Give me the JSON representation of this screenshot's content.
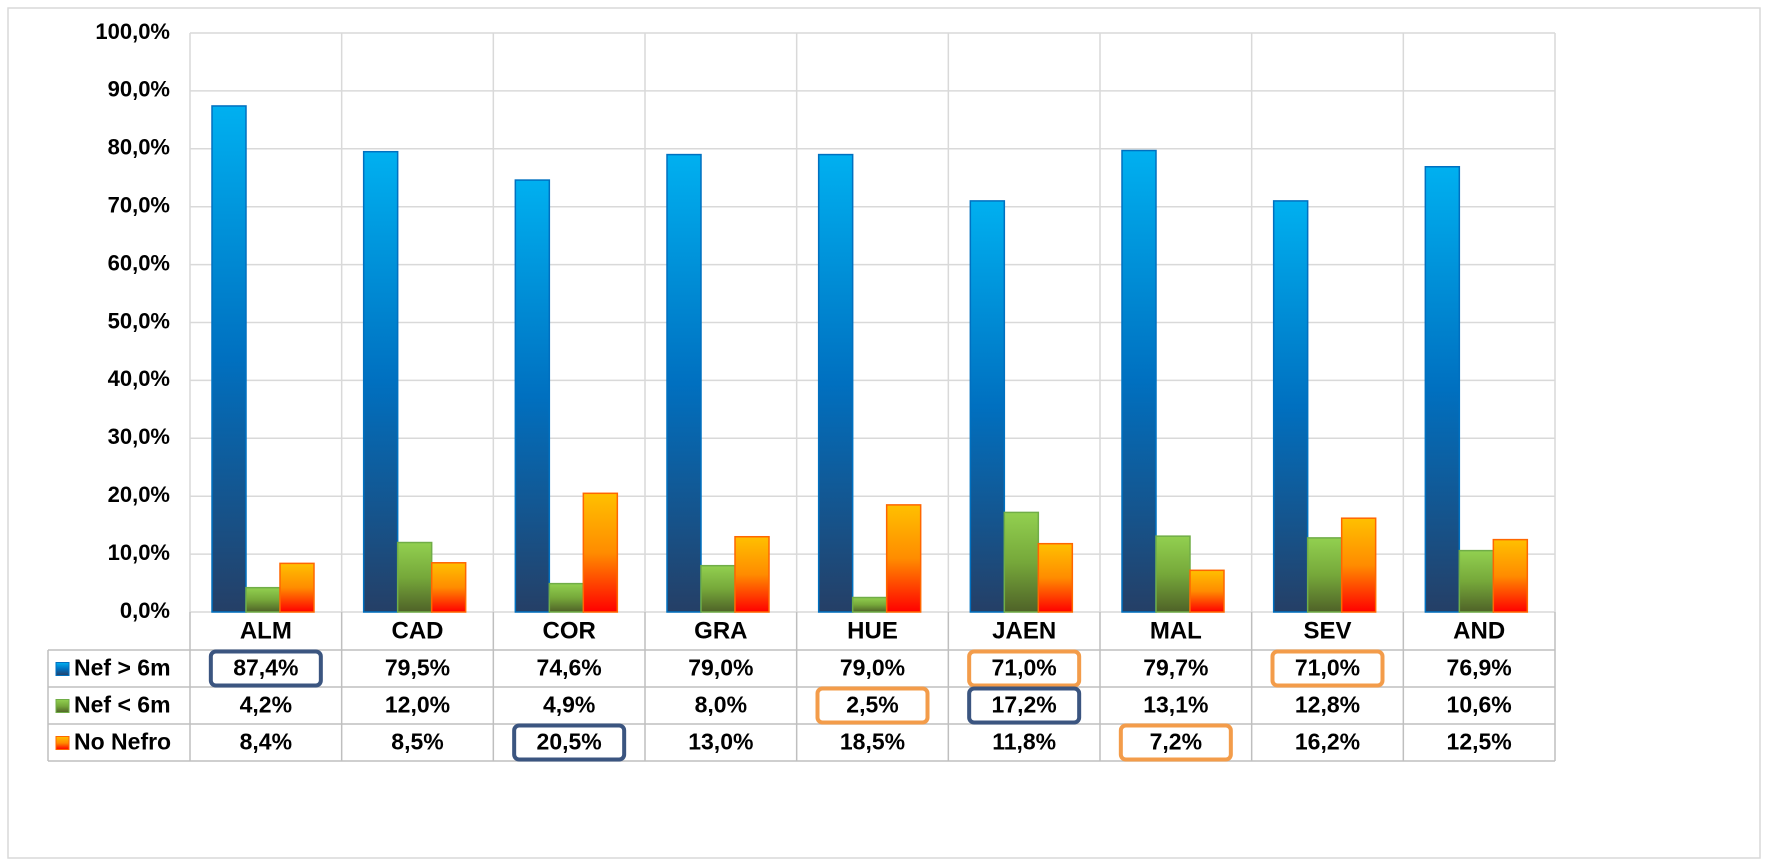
{
  "chart_data": {
    "type": "bar",
    "categories": [
      "ALM",
      "CAD",
      "COR",
      "GRA",
      "HUE",
      "JAEN",
      "MAL",
      "SEV",
      "AND"
    ],
    "series": [
      {
        "name": "Nef > 6m",
        "color": "#0070c0",
        "gradient": [
          "#00b0f0",
          "#0070c0",
          "#253f66"
        ],
        "values": [
          87.4,
          79.5,
          74.6,
          79.0,
          79.0,
          71.0,
          79.7,
          71.0,
          76.9
        ],
        "value_labels": [
          "87,4%",
          "79,5%",
          "74,6%",
          "79,0%",
          "79,0%",
          "71,0%",
          "79,7%",
          "71,0%",
          "76,9%"
        ]
      },
      {
        "name": "Nef < 6m",
        "color": "#70ad47",
        "gradient": [
          "#92d050",
          "#76a83a",
          "#4f6228"
        ],
        "values": [
          4.2,
          12.0,
          4.9,
          8.0,
          2.5,
          17.2,
          13.1,
          12.8,
          10.6
        ],
        "value_labels": [
          "4,2%",
          "12,0%",
          "4,9%",
          "8,0%",
          "2,5%",
          "17,2%",
          "13,1%",
          "12,8%",
          "10,6%"
        ]
      },
      {
        "name": "No Nefro",
        "color": "#ff6600",
        "gradient": [
          "#ffc000",
          "#ff8c00",
          "#ff0000"
        ],
        "values": [
          8.4,
          8.5,
          20.5,
          13.0,
          18.5,
          11.8,
          7.2,
          16.2,
          12.5
        ],
        "value_labels": [
          "8,4%",
          "8,5%",
          "20,5%",
          "13,0%",
          "18,5%",
          "11,8%",
          "7,2%",
          "16,2%",
          "12,5%"
        ]
      }
    ],
    "ylim": [
      0,
      100
    ],
    "yticks": [
      {
        "value": 0,
        "label": "0,0%"
      },
      {
        "value": 10,
        "label": "10,0%"
      },
      {
        "value": 20,
        "label": "20,0%"
      },
      {
        "value": 30,
        "label": "30,0%"
      },
      {
        "value": 40,
        "label": "40,0%"
      },
      {
        "value": 50,
        "label": "50,0%"
      },
      {
        "value": 60,
        "label": "60,0%"
      },
      {
        "value": 70,
        "label": "70,0%"
      },
      {
        "value": 80,
        "label": "80,0%"
      },
      {
        "value": 90,
        "label": "90,0%"
      },
      {
        "value": 100,
        "label": "100,0%"
      }
    ],
    "grid": true,
    "data_table": true,
    "highlights": [
      {
        "series": 0,
        "index": 0,
        "color": "#3b5580"
      },
      {
        "series": 0,
        "index": 5,
        "color": "#f39c4a"
      },
      {
        "series": 0,
        "index": 7,
        "color": "#f39c4a"
      },
      {
        "series": 1,
        "index": 4,
        "color": "#f39c4a"
      },
      {
        "series": 1,
        "index": 5,
        "color": "#3b5580"
      },
      {
        "series": 2,
        "index": 2,
        "color": "#3b5580"
      },
      {
        "series": 2,
        "index": 6,
        "color": "#f39c4a"
      }
    ]
  }
}
